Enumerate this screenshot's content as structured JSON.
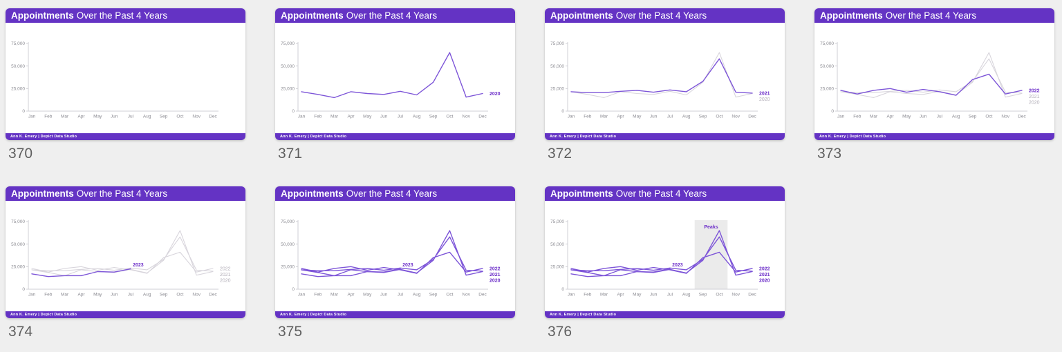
{
  "title": {
    "bold": "Appointments",
    "rest": "Over the Past 4 Years"
  },
  "footer_credit": "Ann K. Emery | Depict Data Studio",
  "colors": {
    "header_purple": "#6433c4",
    "line_purple": "#7d55d8",
    "accent_label": "#6d2fc9",
    "muted_line": "#d8d5dc",
    "muted_label": "#b2aeb8",
    "axis_text": "#8b8b92",
    "axis_line": "#cfcfd4",
    "band": "#ebebeb",
    "page_bg": "#efefef",
    "card_bg": "#ffffff",
    "number_text": "#5f5f5f"
  },
  "chart_data": {
    "type": "line",
    "title": "Appointments Over the Past 4 Years",
    "x": [
      "Jan",
      "Feb",
      "Mar",
      "Apr",
      "May",
      "Jun",
      "Jul",
      "Aug",
      "Sep",
      "Oct",
      "Nov",
      "Dec"
    ],
    "ylim": [
      0,
      75000
    ],
    "ylabel": "",
    "xlabel": "",
    "grid": false,
    "y_ticks": [
      {
        "value": 75000,
        "label": "75,000"
      },
      {
        "value": 50000,
        "label": "50,000"
      },
      {
        "value": 25000,
        "label": "25,000"
      },
      {
        "value": 0,
        "label": "0"
      }
    ],
    "series": [
      {
        "name": "2020",
        "values": [
          21500,
          18500,
          15000,
          21500,
          19500,
          18500,
          22000,
          18000,
          32000,
          65000,
          15500,
          19500
        ]
      },
      {
        "name": "2021",
        "values": [
          21500,
          20500,
          20500,
          22000,
          23000,
          21000,
          23500,
          21500,
          33000,
          58000,
          21000,
          20000
        ]
      },
      {
        "name": "2022",
        "values": [
          23000,
          19000,
          23000,
          25000,
          21000,
          24000,
          21500,
          17500,
          35000,
          41000,
          19000,
          23000
        ]
      },
      {
        "name": "2023",
        "values": [
          17000,
          14000,
          15000,
          15000,
          19500,
          19000,
          22500
        ]
      }
    ]
  },
  "cards": [
    {
      "number": "370",
      "series": [],
      "end_labels": []
    },
    {
      "number": "371",
      "series": [
        {
          "name": "2020",
          "style": "highlight"
        }
      ],
      "end_labels": [
        {
          "series": "2020",
          "text": "2020",
          "style": "highlight"
        }
      ]
    },
    {
      "number": "372",
      "series": [
        {
          "name": "2020",
          "style": "muted"
        },
        {
          "name": "2021",
          "style": "highlight"
        }
      ],
      "end_labels": [
        {
          "series": "2021",
          "text": "2021",
          "style": "highlight"
        },
        {
          "series": "2020",
          "text": "2020",
          "style": "muted"
        }
      ]
    },
    {
      "number": "373",
      "series": [
        {
          "name": "2020",
          "style": "muted"
        },
        {
          "name": "2021",
          "style": "muted"
        },
        {
          "name": "2022",
          "style": "highlight"
        }
      ],
      "end_labels": [
        {
          "series": "2022",
          "text": "2022",
          "style": "highlight"
        },
        {
          "series": "2021",
          "text": "2021",
          "style": "muted"
        },
        {
          "series": "2020",
          "text": "2020",
          "style": "muted"
        }
      ]
    },
    {
      "number": "374",
      "series": [
        {
          "name": "2020",
          "style": "muted"
        },
        {
          "name": "2021",
          "style": "muted"
        },
        {
          "name": "2022",
          "style": "muted"
        },
        {
          "name": "2023",
          "style": "highlight"
        }
      ],
      "mid_label": {
        "series": "2023",
        "text": "2023",
        "style": "highlight"
      },
      "end_labels": [
        {
          "series": "2022",
          "text": "2022",
          "style": "muted"
        },
        {
          "series": "2021",
          "text": "2021",
          "style": "muted"
        },
        {
          "series": "2020",
          "text": "2020",
          "style": "muted"
        }
      ]
    },
    {
      "number": "375",
      "series": [
        {
          "name": "2020",
          "style": "highlight"
        },
        {
          "name": "2021",
          "style": "highlight"
        },
        {
          "name": "2022",
          "style": "highlight"
        },
        {
          "name": "2023",
          "style": "highlight"
        }
      ],
      "mid_label": {
        "series": "2023",
        "text": "2023",
        "style": "highlight"
      },
      "end_labels": [
        {
          "series": "2022",
          "text": "2022",
          "style": "highlight"
        },
        {
          "series": "2021",
          "text": "2021",
          "style": "highlight"
        },
        {
          "series": "2020",
          "text": "2020",
          "style": "highlight"
        }
      ]
    },
    {
      "number": "376",
      "series": [
        {
          "name": "2020",
          "style": "highlight"
        },
        {
          "name": "2021",
          "style": "highlight"
        },
        {
          "name": "2022",
          "style": "highlight"
        },
        {
          "name": "2023",
          "style": "highlight"
        }
      ],
      "mid_label": {
        "series": "2023",
        "text": "2023",
        "style": "highlight"
      },
      "annotation": {
        "label": "Peaks",
        "x_from": "Sep",
        "x_to": "Oct"
      },
      "end_labels": [
        {
          "series": "2022",
          "text": "2022",
          "style": "highlight"
        },
        {
          "series": "2021",
          "text": "2021",
          "style": "highlight"
        },
        {
          "series": "2020",
          "text": "2020",
          "style": "highlight"
        }
      ]
    }
  ]
}
